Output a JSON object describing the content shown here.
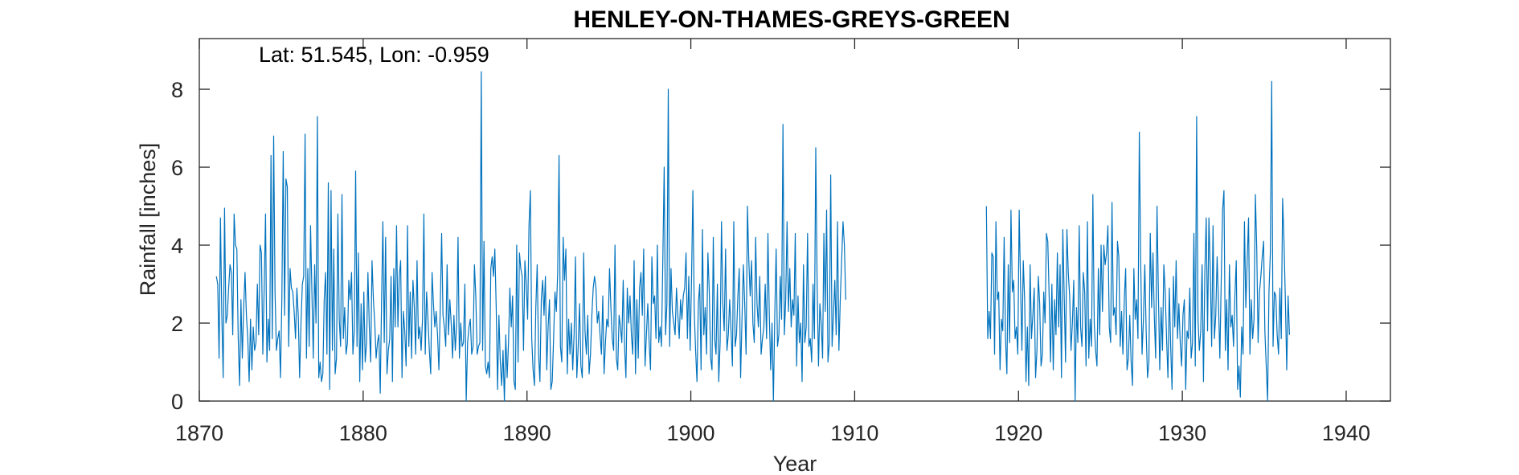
{
  "chart_data": {
    "type": "line",
    "title": "HENLEY-ON-THAMES-GREYS-GREEN",
    "annotation": "Lat: 51.545, Lon: -0.959",
    "xlabel": "Year",
    "ylabel": "Rainfall [inches]",
    "xlim": [
      1870,
      1942.7
    ],
    "ylim": [
      0,
      9.3
    ],
    "xticks": [
      1870,
      1880,
      1890,
      1900,
      1910,
      1920,
      1930,
      1940
    ],
    "yticks": [
      0,
      2,
      4,
      6,
      8
    ],
    "grid": false,
    "legend": "none",
    "line_color": "#0072BD",
    "series": [
      {
        "x_start": 1871.04,
        "x_step": 0.0833333,
        "values": [
          3.2,
          3.0,
          1.1,
          4.7,
          2.2,
          0.6,
          4.95,
          2.0,
          2.2,
          2.9,
          3.5,
          3.3,
          1.7,
          4.8,
          4.0,
          3.9,
          1.6,
          0.4,
          2.6,
          1.1,
          2.4,
          3.3,
          2.2,
          1.6,
          0.5,
          2.1,
          0.8,
          1.9,
          1.3,
          1.5,
          3.0,
          1.7,
          4.0,
          3.8,
          1.2,
          2.9,
          4.8,
          1.0,
          2.1,
          1.3,
          6.3,
          1.6,
          6.8,
          2.8,
          1.3,
          1.6,
          1.8,
          0.6,
          2.6,
          6.4,
          2.2,
          5.7,
          5.5,
          1.4,
          3.4,
          2.9,
          2.8,
          2.3,
          1.6,
          2.9,
          2.2,
          0.6,
          2.0,
          3.0,
          3.2,
          6.85,
          1.1,
          3.4,
          1.4,
          4.5,
          2.8,
          1.1,
          3.5,
          2.0,
          7.3,
          0.6,
          1.0,
          0.5,
          0.7,
          2.6,
          3.3,
          1.2,
          5.6,
          0.3,
          5.4,
          1.3,
          3.9,
          0.7,
          1.1,
          4.8,
          2.1,
          1.4,
          5.3,
          1.6,
          2.4,
          1.2,
          1.5,
          3.1,
          2.6,
          3.3,
          1.2,
          1.8,
          5.9,
          1.4,
          3.8,
          0.5,
          2.5,
          0.8,
          2.8,
          1.0,
          1.5,
          3.3,
          1.9,
          1.0,
          3.6,
          2.6,
          2.0,
          1.1,
          1.5,
          1.7,
          0.2,
          2.6,
          4.6,
          1.5,
          4.2,
          0.7,
          1.3,
          1.6,
          3.2,
          0.5,
          3.4,
          1.9,
          4.5,
          1.9,
          3.2,
          3.6,
          0.6,
          2.3,
          1.8,
          0.9,
          4.5,
          1.4,
          2.8,
          1.1,
          3.1,
          2.4,
          1.2,
          3.6,
          1.6,
          1.9,
          1.3,
          2.1,
          4.8,
          1.2,
          2.8,
          2.1,
          1.3,
          0.7,
          3.3,
          2.5,
          1.9,
          2.3,
          1.7,
          0.8,
          2.4,
          4.3,
          2.2,
          1.9,
          1.4,
          3.5,
          1.7,
          2.6,
          2.0,
          1.1,
          2.2,
          1.3,
          2.0,
          4.2,
          1.1,
          2.0,
          1.4,
          1.5,
          3.0,
          0.0,
          1.5,
          1.9,
          2.1,
          1.2,
          1.4,
          3.5,
          2.7,
          1.2,
          1.4,
          1.5,
          8.45,
          1.3,
          4.1,
          0.9,
          0.7,
          1.0,
          0.6,
          3.4,
          3.7,
          3.2,
          3.9,
          2.4,
          0.3,
          2.2,
          1.0,
          0.4,
          1.3,
          0.0,
          1.7,
          0.6,
          1.5,
          2.9,
          1.9,
          2.7,
          0.5,
          0.3,
          4.0,
          1.0,
          3.8,
          3.4,
          3.2,
          1.3,
          3.6,
          3.0,
          2.1,
          4.5,
          5.4,
          1.6,
          0.8,
          0.4,
          2.4,
          3.5,
          1.2,
          0.5,
          2.6,
          3.1,
          2.2,
          3.2,
          0.8,
          1.9,
          2.6,
          0.3,
          0.5,
          1.6,
          2.8,
          2.3,
          3.3,
          6.3,
          1.4,
          1.0,
          4.2,
          3.1,
          3.9,
          0.7,
          2.1,
          1.2,
          2.0,
          0.8,
          1.7,
          3.7,
          0.6,
          1.4,
          2.5,
          0.9,
          0.6,
          3.8,
          1.8,
          1.2,
          2.2,
          0.7,
          1.2,
          2.2,
          2.9,
          3.2,
          2.9,
          2.0,
          2.3,
          1.7,
          1.2,
          2.7,
          0.7,
          1.5,
          2.1,
          1.9,
          3.4,
          2.4,
          1.6,
          1.3,
          4.0,
          1.1,
          0.8,
          2.2,
          1.9,
          1.5,
          3.1,
          1.4,
          0.6,
          2.9,
          2.0,
          2.7,
          1.7,
          1.2,
          3.6,
          0.7,
          2.6,
          1.1,
          2.9,
          3.3,
          2.2,
          3.9,
          0.9,
          1.7,
          2.5,
          1.5,
          0.8,
          3.7,
          2.5,
          2.7,
          1.6,
          4.0,
          1.5,
          1.9,
          1.4,
          3.6,
          6.0,
          1.7,
          2.5,
          8.0,
          1.4,
          3.4,
          2.3,
          2.0,
          1.7,
          2.9,
          2.2,
          1.6,
          2.6,
          2.1,
          2.7,
          2.9,
          3.8,
          1.6,
          3.2,
          1.3,
          3.1,
          5.4,
          2.3,
          1.3,
          0.5,
          2.5,
          3.0,
          0.8,
          4.4,
          1.7,
          2.4,
          1.2,
          3.8,
          2.8,
          1.1,
          0.8,
          4.2,
          1.6,
          1.2,
          3.0,
          0.5,
          1.5,
          4.6,
          2.5,
          1.8,
          3.9,
          1.3,
          1.7,
          2.6,
          1.8,
          0.9,
          4.6,
          1.4,
          1.7,
          2.7,
          3.4,
          0.6,
          2.1,
          3.5,
          2.5,
          1.2,
          5.0,
          3.6,
          2.7,
          3.6,
          2.0,
          1.5,
          4.2,
          2.5,
          1.9,
          3.2,
          1.2,
          1.6,
          1.9,
          3.0,
          1.6,
          4.3,
          2.2,
          0.8,
          2.0,
          0.0,
          2.2,
          3.9,
          1.4,
          1.7,
          3.2,
          2.1,
          7.1,
          1.7,
          2.6,
          4.6,
          2.3,
          3.4,
          1.9,
          2.6,
          2.2,
          4.3,
          0.9,
          2.7,
          1.5,
          2.0,
          0.5,
          3.5,
          1.5,
          1.9,
          4.3,
          1.4,
          1.6,
          1.0,
          3.0,
          1.6,
          6.5,
          3.0,
          0.9,
          2.5,
          2.0,
          1.1,
          4.3,
          2.3,
          4.9,
          1.0,
          1.5,
          5.8,
          1.4,
          2.2,
          3.1,
          1.7,
          4.6,
          1.3,
          2.6,
          3.6,
          4.6,
          4.0,
          2.6
        ]
      },
      {
        "x_start": 1918.04,
        "x_step": 0.0833333,
        "values": [
          5.0,
          1.6,
          2.3,
          1.6,
          3.8,
          3.7,
          1.2,
          4.6,
          2.6,
          2.8,
          0.8,
          2.1,
          1.8,
          4.2,
          1.6,
          0.7,
          3.5,
          1.5,
          4.9,
          2.8,
          3.1,
          1.6,
          1.9,
          1.2,
          4.9,
          3.0,
          1.3,
          3.6,
          2.6,
          0.5,
          1.9,
          0.4,
          3.5,
          1.6,
          2.2,
          2.9,
          0.6,
          1.3,
          3.2,
          2.5,
          0.9,
          1.2,
          2.8,
          2.0,
          4.3,
          4.1,
          2.7,
          1.0,
          3.0,
          0.8,
          2.6,
          1.7,
          3.8,
          1.9,
          3.5,
          0.6,
          4.4,
          2.7,
          1.0,
          4.4,
          3.3,
          2.7,
          1.3,
          2.0,
          3.1,
          0.0,
          2.4,
          1.5,
          4.5,
          1.9,
          1.4,
          3.3,
          2.8,
          0.9,
          4.6,
          1.1,
          2.1,
          1.4,
          5.3,
          2.0,
          1.3,
          0.9,
          3.4,
          1.7,
          4.0,
          2.3,
          4.0,
          3.5,
          3.8,
          4.5,
          1.9,
          1.5,
          5.1,
          2.2,
          2.4,
          1.7,
          4.1,
          3.7,
          1.4,
          2.3,
          1.2,
          2.6,
          3.4,
          0.8,
          1.1,
          2.2,
          1.0,
          0.4,
          3.4,
          2.1,
          2.6,
          1.6,
          6.9,
          3.6,
          1.2,
          2.1,
          3.5,
          1.8,
          0.6,
          1.0,
          4.3,
          2.4,
          3.8,
          2.2,
          1.1,
          5.0,
          2.8,
          0.8,
          2.4,
          1.3,
          3.5,
          2.8,
          1.6,
          0.6,
          2.9,
          1.4,
          0.3,
          3.2,
          1.9,
          3.6,
          1.6,
          2.5,
          1.5,
          0.9,
          2.2,
          2.6,
          0.3,
          1.8,
          1.6,
          2.9,
          1.1,
          1.5,
          4.3,
          0.9,
          7.3,
          2.1,
          1.3,
          1.8,
          3.5,
          0.5,
          3.3,
          4.7,
          1.8,
          4.7,
          3.3,
          1.4,
          4.5,
          1.6,
          2.2,
          3.7,
          2.5,
          1.1,
          3.1,
          4.9,
          5.4,
          1.3,
          2.6,
          0.8,
          3.5,
          1.9,
          2.2,
          1.4,
          2.7,
          3.6,
          0.3,
          0.9,
          0.1,
          1.9,
          1.2,
          4.6,
          2.4,
          3.6,
          4.7,
          1.2,
          2.6,
          1.6,
          2.1,
          5.3,
          3.9,
          1.5,
          2.8,
          3.2,
          3.7,
          4.1,
          1.8,
          0.9,
          0.0,
          2.8,
          3.8,
          8.2,
          1.4,
          2.8,
          2.7,
          1.7,
          1.2,
          2.9,
          1.6,
          5.2,
          4.1,
          2.6,
          0.8,
          2.7,
          1.7
        ]
      }
    ]
  }
}
